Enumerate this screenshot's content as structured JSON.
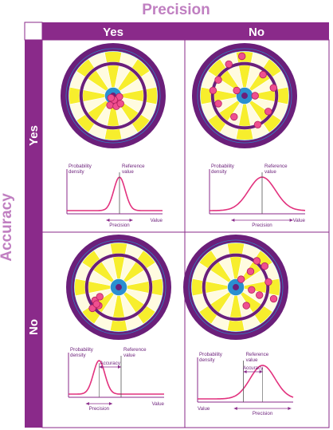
{
  "colors": {
    "title": "#c07fc1",
    "header_bg": "#8a2a8a",
    "header_text": "#ffffff",
    "grid_line": "#8a2a8a",
    "purple": "#6b1f7a",
    "pink": "#e2327e",
    "blue": "#2a8fd0",
    "yellow": "#f7ee2d",
    "cream": "#fffbe0",
    "dart": "#ef4f8f",
    "axis": "#8a2a8a",
    "text": "#6b1f7a"
  },
  "headers": {
    "top_title": "Precision",
    "side_title": "Accuracy",
    "col_yes": "Yes",
    "col_no": "No",
    "row_yes": "Yes",
    "row_no": "No"
  },
  "panels": [
    {
      "id": "yes-yes",
      "darts": [
        [
          0.08,
          0.12
        ],
        [
          -0.06,
          0.18
        ],
        [
          0.12,
          0.02
        ],
        [
          0.02,
          0.08
        ],
        [
          -0.04,
          0.04
        ],
        [
          0.06,
          0.2
        ],
        [
          0.14,
          0.15
        ]
      ],
      "chart": {
        "ylabel": "Probability density",
        "ref_label": "Reference value",
        "xlabel": "Value",
        "precision_label": "Precision",
        "accuracy_label": "",
        "curve_center": 0.55,
        "curve_width": 0.06,
        "ref_x": 0.55,
        "show_accuracy": false
      }
    },
    {
      "id": "no-yes",
      "darts": [
        [
          -0.3,
          -0.6
        ],
        [
          -0.5,
          -0.3
        ],
        [
          0.35,
          -0.4
        ],
        [
          -0.15,
          -0.1
        ],
        [
          0.2,
          0.0
        ],
        [
          -0.5,
          0.15
        ],
        [
          0.45,
          0.3
        ],
        [
          -0.2,
          0.4
        ],
        [
          0.25,
          0.55
        ],
        [
          -0.6,
          -0.1
        ],
        [
          0.55,
          -0.15
        ],
        [
          -0.05,
          -0.75
        ]
      ],
      "chart": {
        "ylabel": "Probability density",
        "ref_label": "Reference value",
        "xlabel": "Value",
        "precision_label": "Precision",
        "accuracy_label": "",
        "curve_center": 0.55,
        "curve_width": 0.14,
        "ref_x": 0.55,
        "show_accuracy": false
      }
    },
    {
      "id": "yes-no",
      "darts": [
        [
          -0.45,
          0.25
        ],
        [
          -0.38,
          0.35
        ],
        [
          -0.5,
          0.4
        ],
        [
          -0.36,
          0.18
        ],
        [
          -0.42,
          0.32
        ]
      ],
      "chart": {
        "ylabel": "Probability density",
        "ref_label": "Reference value",
        "xlabel": "Value",
        "precision_label": "Precision",
        "accuracy_label": "Accuracy",
        "curve_center": 0.32,
        "curve_width": 0.06,
        "ref_x": 0.55,
        "show_accuracy": true
      }
    },
    {
      "id": "no-no",
      "darts": [
        [
          0.1,
          -0.15
        ],
        [
          0.28,
          -0.3
        ],
        [
          0.4,
          -0.5
        ],
        [
          0.55,
          -0.4
        ],
        [
          0.62,
          -0.1
        ],
        [
          0.45,
          0.15
        ],
        [
          0.3,
          0.05
        ],
        [
          0.72,
          0.22
        ],
        [
          0.2,
          0.35
        ]
      ],
      "chart": {
        "ylabel": "Probability density",
        "ref_label": "Reference value",
        "xlabel": "Value",
        "precision_label": "Precision",
        "accuracy_label": "Accuracy",
        "curve_center": 0.68,
        "curve_width": 0.13,
        "ref_x": 0.48,
        "show_accuracy": true,
        "xlabel_left": true
      }
    }
  ]
}
